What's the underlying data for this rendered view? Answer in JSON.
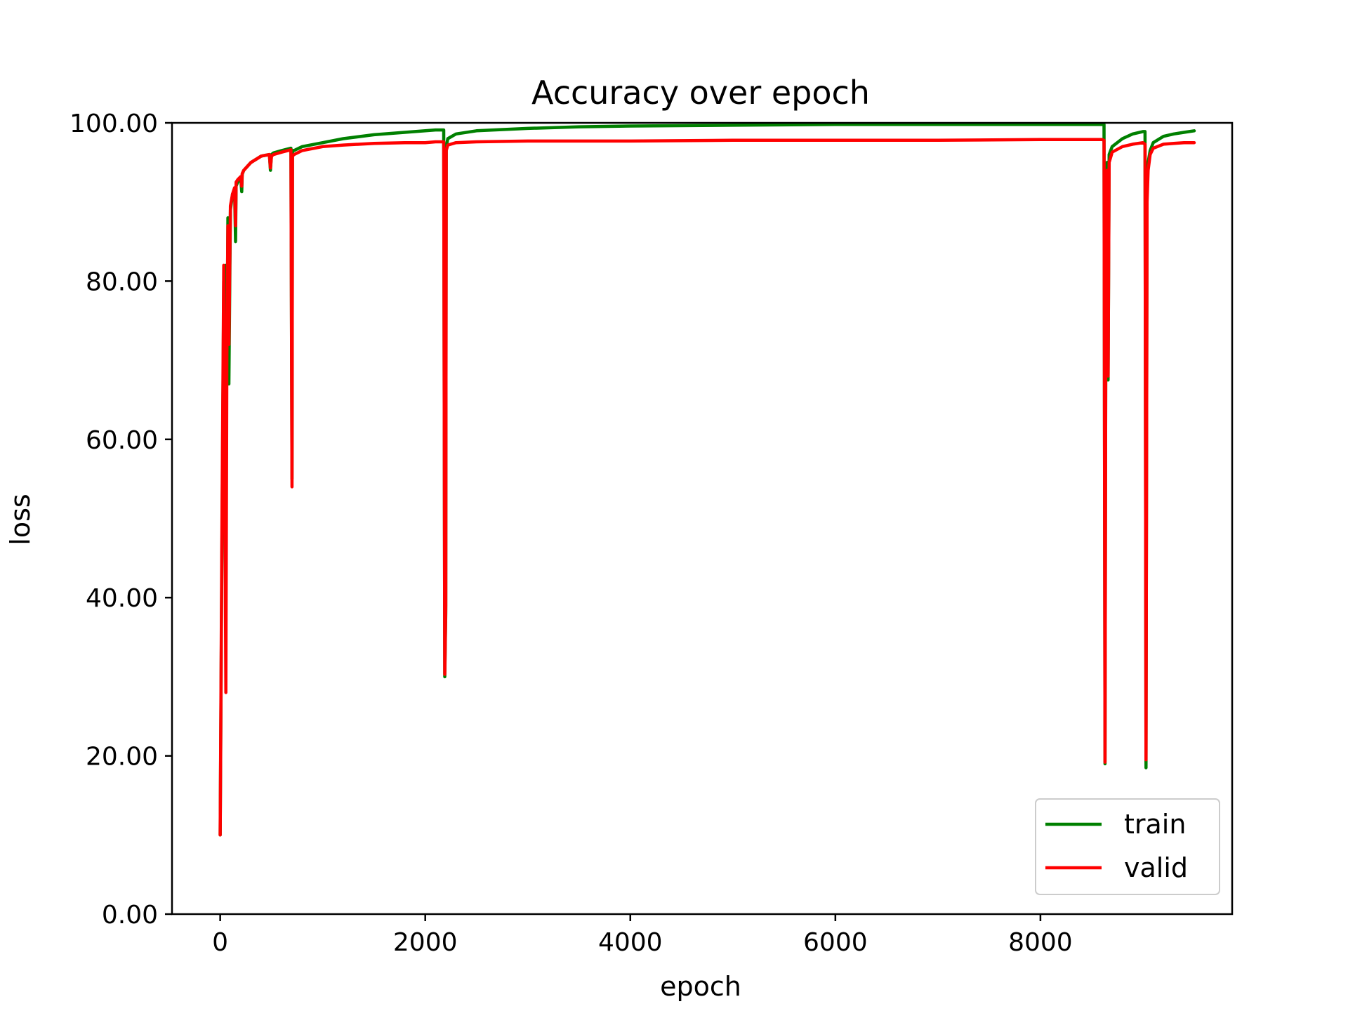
{
  "chart_data": {
    "type": "line",
    "title": "Accuracy over epoch",
    "xlabel": "epoch",
    "ylabel": "loss",
    "xlim": [
      -470,
      9870
    ],
    "ylim": [
      0,
      100
    ],
    "x_ticks": [
      0,
      2000,
      4000,
      6000,
      8000
    ],
    "x_tick_labels": [
      "0",
      "2000",
      "4000",
      "6000",
      "8000"
    ],
    "y_ticks": [
      0,
      20,
      40,
      60,
      80,
      100
    ],
    "y_tick_labels": [
      "0.00",
      "20.00",
      "40.00",
      "60.00",
      "80.00",
      "100.00"
    ],
    "grid": false,
    "legend_position": "bottom-right",
    "series": [
      {
        "name": "train",
        "color": "#008000",
        "x": [
          0,
          15,
          35,
          55,
          65,
          75,
          85,
          100,
          120,
          140,
          150,
          155,
          170,
          200,
          210,
          215,
          230,
          300,
          400,
          480,
          490,
          500,
          520,
          600,
          690,
          700,
          705,
          720,
          800,
          1000,
          1200,
          1500,
          1800,
          2000,
          2100,
          2180,
          2190,
          2200,
          2205,
          2220,
          2300,
          2500,
          3000,
          3500,
          4000,
          5000,
          6000,
          7000,
          8000,
          8500,
          8600,
          8620,
          8630,
          8640,
          8650,
          8660,
          8670,
          8700,
          8800,
          8900,
          9000,
          9020,
          9030,
          9040,
          9050,
          9070,
          9100,
          9200,
          9300,
          9400,
          9500
        ],
        "values": [
          10,
          42,
          80,
          82,
          68,
          88,
          67,
          89,
          91,
          91.5,
          85,
          92,
          92.5,
          93,
          91.3,
          93.5,
          94,
          95,
          95.8,
          96,
          94,
          96,
          96.2,
          96.5,
          96.8,
          55,
          96.5,
          96.5,
          97,
          97.5,
          98,
          98.5,
          98.8,
          99,
          99.1,
          99.1,
          30,
          38,
          97,
          98,
          98.6,
          99,
          99.3,
          99.5,
          99.6,
          99.7,
          99.8,
          99.8,
          99.8,
          99.8,
          99.8,
          99.8,
          19,
          94,
          95,
          67.5,
          96,
          97,
          98,
          98.6,
          98.9,
          98.9,
          18.5,
          93,
          95,
          96.5,
          97.5,
          98.3,
          98.6,
          98.8,
          99
        ]
      },
      {
        "name": "valid",
        "color": "#ff0000",
        "x": [
          0,
          15,
          35,
          55,
          65,
          75,
          85,
          100,
          120,
          140,
          150,
          155,
          170,
          200,
          210,
          215,
          230,
          300,
          400,
          480,
          490,
          500,
          520,
          600,
          690,
          700,
          705,
          720,
          800,
          1000,
          1200,
          1500,
          1800,
          2000,
          2100,
          2180,
          2190,
          2200,
          2205,
          2220,
          2300,
          2500,
          3000,
          3500,
          4000,
          5000,
          6000,
          7000,
          8000,
          8500,
          8600,
          8620,
          8630,
          8640,
          8650,
          8660,
          8670,
          8700,
          8800,
          8900,
          9000,
          9020,
          9030,
          9040,
          9050,
          9070,
          9100,
          9200,
          9300,
          9400,
          9500
        ],
        "values": [
          10,
          45,
          82,
          28,
          70,
          87,
          72,
          89.5,
          91,
          91.8,
          87,
          92.5,
          92.8,
          93.2,
          92,
          93.6,
          94,
          95,
          95.8,
          96,
          94.3,
          95.8,
          96,
          96.3,
          96.6,
          54,
          95.8,
          96,
          96.5,
          97,
          97.2,
          97.4,
          97.5,
          97.5,
          97.6,
          97.6,
          30.3,
          39,
          96.5,
          97.2,
          97.5,
          97.6,
          97.7,
          97.7,
          97.7,
          97.8,
          97.8,
          97.8,
          97.9,
          97.9,
          97.9,
          97.8,
          19.2,
          93,
          94,
          68,
          95,
          96.3,
          97,
          97.3,
          97.5,
          97.3,
          19.5,
          90,
          94,
          96,
          96.8,
          97.3,
          97.4,
          97.5,
          97.5
        ]
      }
    ]
  }
}
